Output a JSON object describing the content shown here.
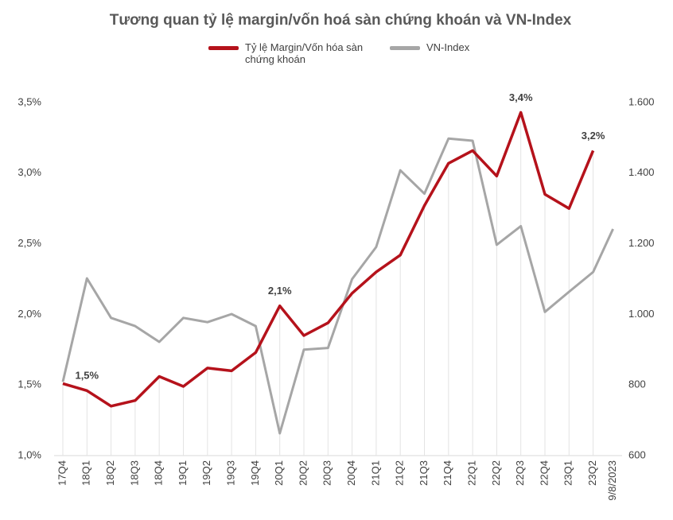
{
  "chart_data": {
    "type": "line",
    "title": "Tương quan tỷ lệ margin/vốn hoá sàn chứng khoán và VN-Index",
    "categories": [
      "17Q4",
      "18Q1",
      "18Q2",
      "18Q3",
      "18Q4",
      "19Q1",
      "19Q2",
      "19Q3",
      "19Q4",
      "20Q1",
      "20Q2",
      "20Q3",
      "20Q4",
      "21Q1",
      "21Q2",
      "21Q3",
      "21Q4",
      "22Q1",
      "22Q2",
      "22Q3",
      "22Q4",
      "23Q1",
      "23Q2",
      "9/8/2023"
    ],
    "series": [
      {
        "name": "Tỷ lệ Margin/Vốn hóa sàn chứng khoán",
        "color": "#b5121b",
        "axis": "y",
        "values": [
          1.51,
          1.46,
          1.35,
          1.39,
          1.56,
          1.49,
          1.62,
          1.6,
          1.73,
          2.06,
          1.85,
          1.94,
          2.15,
          2.3,
          2.42,
          2.77,
          3.07,
          3.16,
          2.98,
          3.43,
          2.85,
          2.75,
          3.16,
          null
        ],
        "value_labels": [
          null,
          "1,5%",
          null,
          null,
          null,
          null,
          null,
          null,
          null,
          "2,1%",
          null,
          null,
          null,
          null,
          null,
          null,
          null,
          null,
          null,
          "3,4%",
          null,
          null,
          "3,2%",
          null
        ]
      },
      {
        "name": "VN-Index",
        "color": "#a6a6a6",
        "axis": "y2",
        "values": [
          809,
          1102,
          990,
          967,
          922,
          990,
          978,
          1001,
          967,
          663,
          900,
          905,
          1100,
          1191,
          1408,
          1342,
          1498,
          1492,
          1197,
          1250,
          1007,
          1064,
          1120,
          1242
        ]
      }
    ],
    "ylim": [
      1.0,
      3.5
    ],
    "yticks": [
      {
        "value": 1.0,
        "label": "1,0%"
      },
      {
        "value": 1.5,
        "label": "1,5%"
      },
      {
        "value": 2.0,
        "label": "2,0%"
      },
      {
        "value": 2.5,
        "label": "2,5%"
      },
      {
        "value": 3.0,
        "label": "3,0%"
      },
      {
        "value": 3.5,
        "label": "3,5%"
      }
    ],
    "y2lim": [
      600,
      1600
    ],
    "y2ticks": [
      600,
      800,
      {
        "value": 1000,
        "label": "1.000"
      },
      {
        "value": 1200,
        "label": "1.200"
      },
      {
        "value": 1400,
        "label": "1.400"
      },
      {
        "value": 1600,
        "label": "1.600"
      }
    ],
    "legend": "top"
  }
}
